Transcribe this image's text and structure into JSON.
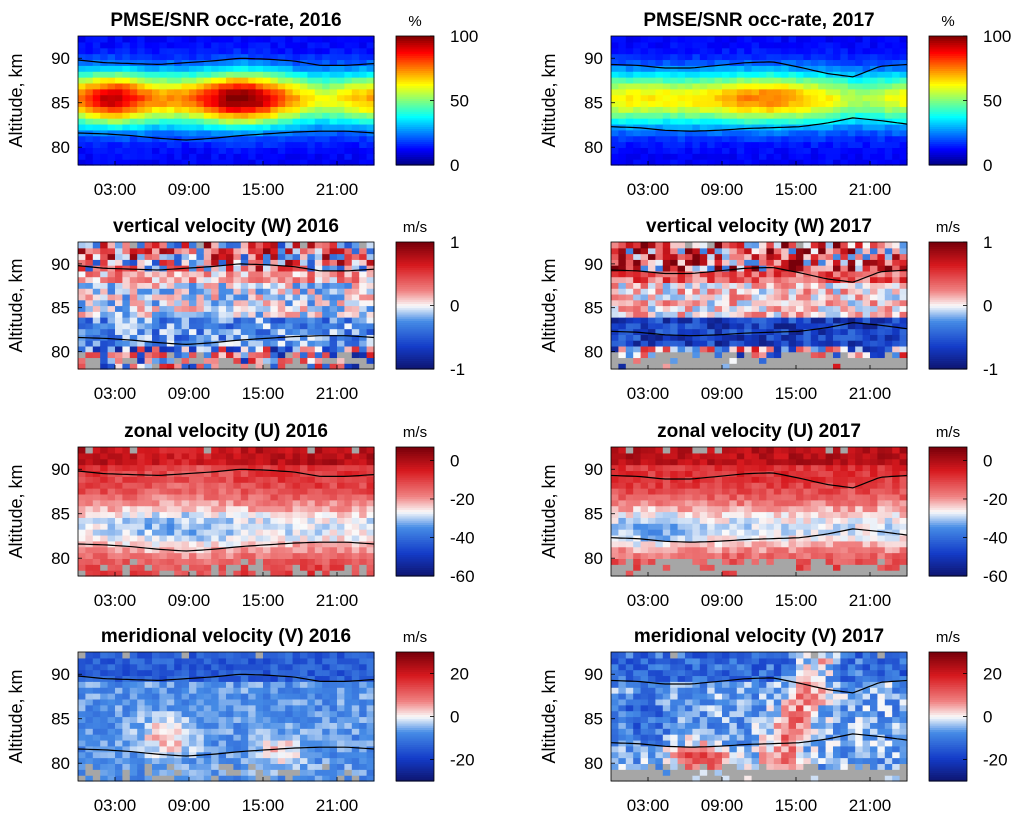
{
  "chart_data": [
    {
      "type": "heatmap",
      "title": "PMSE/SNR occ-rate, 2016",
      "ylabel": "Altitude, km",
      "xticks": [
        "03:00",
        "09:00",
        "15:00",
        "21:00"
      ],
      "yticks": [
        "80",
        "85",
        "90"
      ],
      "ylim": [
        78,
        92.5
      ],
      "colorbar": {
        "unit": "%",
        "ticks": [
          "0",
          "50",
          "100"
        ],
        "range": [
          0,
          100
        ],
        "colormap": "jet"
      },
      "upper_boundary_km": [
        89.8,
        89.5,
        89.4,
        89.3,
        89.5,
        89.7,
        90.0,
        89.9,
        89.7,
        89.2,
        89.2,
        89.4
      ],
      "lower_boundary_km": [
        81.6,
        81.5,
        81.3,
        81.0,
        80.8,
        81.0,
        81.3,
        81.5,
        81.7,
        81.8,
        81.8,
        81.6
      ]
    },
    {
      "type": "heatmap",
      "title": "PMSE/SNR occ-rate, 2017",
      "ylabel": "Altitude, km",
      "xticks": [
        "03:00",
        "09:00",
        "15:00",
        "21:00"
      ],
      "yticks": [
        "80",
        "85",
        "90"
      ],
      "ylim": [
        78,
        92.5
      ],
      "colorbar": {
        "unit": "%",
        "ticks": [
          "0",
          "50",
          "100"
        ],
        "range": [
          0,
          100
        ],
        "colormap": "jet"
      },
      "upper_boundary_km": [
        89.3,
        89.2,
        88.9,
        88.9,
        89.2,
        89.5,
        89.6,
        89.0,
        88.3,
        87.9,
        89.1,
        89.3
      ],
      "lower_boundary_km": [
        82.3,
        82.2,
        81.9,
        81.8,
        81.9,
        82.1,
        82.2,
        82.3,
        82.7,
        83.3,
        83.0,
        82.6
      ]
    },
    {
      "type": "heatmap",
      "title": "vertical velocity (W) 2016",
      "ylabel": "Altitude, km",
      "xticks": [
        "03:00",
        "09:00",
        "15:00",
        "21:00"
      ],
      "yticks": [
        "80",
        "85",
        "90"
      ],
      "ylim": [
        78,
        92.5
      ],
      "colorbar": {
        "unit": "m/s",
        "ticks": [
          "-1",
          "0",
          "1"
        ],
        "range": [
          -1,
          1
        ],
        "colormap": "diverging"
      }
    },
    {
      "type": "heatmap",
      "title": "vertical velocity (W) 2017",
      "ylabel": "Altitude, km",
      "xticks": [
        "03:00",
        "09:00",
        "15:00",
        "21:00"
      ],
      "yticks": [
        "80",
        "85",
        "90"
      ],
      "ylim": [
        78,
        92.5
      ],
      "colorbar": {
        "unit": "m/s",
        "ticks": [
          "-1",
          "0",
          "1"
        ],
        "range": [
          -1,
          1
        ],
        "colormap": "diverging"
      }
    },
    {
      "type": "heatmap",
      "title": "zonal velocity (U) 2016",
      "ylabel": "Altitude, km",
      "xticks": [
        "03:00",
        "09:00",
        "15:00",
        "21:00"
      ],
      "yticks": [
        "80",
        "85",
        "90"
      ],
      "ylim": [
        78,
        92.5
      ],
      "colorbar": {
        "unit": "m/s",
        "ticks": [
          "-60",
          "-40",
          "-20",
          "0"
        ],
        "range": [
          -60,
          7
        ],
        "colormap": "diverging"
      }
    },
    {
      "type": "heatmap",
      "title": "zonal velocity (U) 2017",
      "ylabel": "Altitude, km",
      "xticks": [
        "03:00",
        "09:00",
        "15:00",
        "21:00"
      ],
      "yticks": [
        "80",
        "85",
        "90"
      ],
      "ylim": [
        78,
        92.5
      ],
      "colorbar": {
        "unit": "m/s",
        "ticks": [
          "-60",
          "-40",
          "-20",
          "0"
        ],
        "range": [
          -60,
          7
        ],
        "colormap": "diverging"
      }
    },
    {
      "type": "heatmap",
      "title": "meridional velocity (V) 2016",
      "ylabel": "Altitude, km",
      "xticks": [
        "03:00",
        "09:00",
        "15:00",
        "21:00"
      ],
      "yticks": [
        "80",
        "85",
        "90"
      ],
      "ylim": [
        78,
        92.5
      ],
      "colorbar": {
        "unit": "m/s",
        "ticks": [
          "-20",
          "0",
          "20"
        ],
        "range": [
          -30,
          30
        ],
        "colormap": "diverging"
      }
    },
    {
      "type": "heatmap",
      "title": "meridional velocity (V) 2017",
      "ylabel": "Altitude, km",
      "xticks": [
        "03:00",
        "09:00",
        "15:00",
        "21:00"
      ],
      "yticks": [
        "80",
        "85",
        "90"
      ],
      "ylim": [
        78,
        92.5
      ],
      "colorbar": {
        "unit": "m/s",
        "ticks": [
          "-20",
          "0",
          "20"
        ],
        "range": [
          -30,
          30
        ],
        "colormap": "diverging"
      }
    }
  ]
}
